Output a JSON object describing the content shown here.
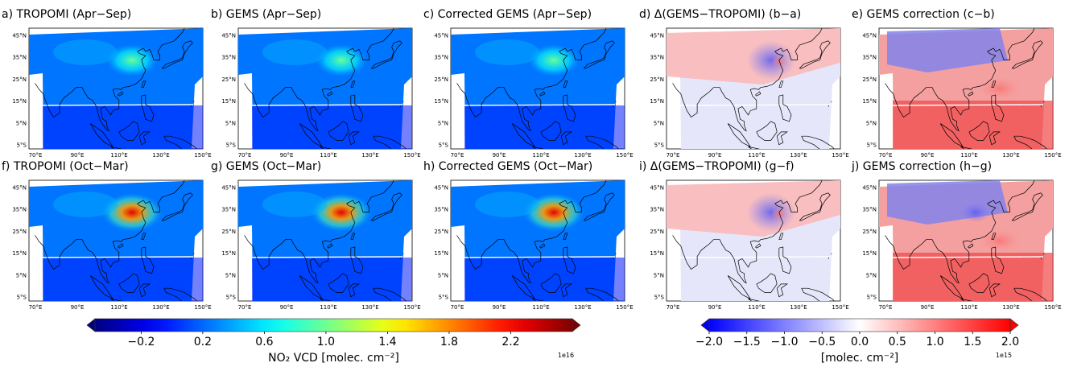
{
  "figure": {
    "colorbars": [
      {
        "id": "no2",
        "label": "NO₂ VCD [molec. cm⁻²]",
        "ticks": [
          "−0.2",
          "0.2",
          "0.6",
          "1.0",
          "1.4",
          "1.8",
          "2.2"
        ],
        "tick_values": [
          -0.2,
          0.2,
          0.6,
          1.0,
          1.4,
          1.8,
          2.2
        ],
        "range": [
          -0.5,
          2.6
        ],
        "multiplier": "1e16",
        "colormap": "jet"
      },
      {
        "id": "diff",
        "label": "[molec. cm⁻²]",
        "ticks": [
          "−2.0",
          "−1.5",
          "−1.0",
          "−0.5",
          "0.0",
          "0.5",
          "1.0",
          "1.5",
          "2.0"
        ],
        "tick_values": [
          -2.0,
          -1.5,
          -1.0,
          -0.5,
          0.0,
          0.5,
          1.0,
          1.5,
          2.0
        ],
        "range": [
          -2.0,
          2.0
        ],
        "multiplier": "1e15",
        "colormap": "bwr"
      }
    ]
  },
  "chart_data": [
    {
      "type": "heatmap",
      "title": "a) TROPOMI (Apr−Sep)",
      "colorbar": "no2",
      "xticks": [
        "70°E",
        "90°E",
        "110°E",
        "130°E",
        "150°E"
      ],
      "yticks": [
        "45°N",
        "35°N",
        "25°N",
        "15°N",
        "5°N",
        "5°S"
      ]
    },
    {
      "type": "heatmap",
      "title": "b) GEMS (Apr−Sep)",
      "colorbar": "no2",
      "xticks": [
        "70°E",
        "90°E",
        "110°E",
        "130°E",
        "150°E"
      ],
      "yticks": [
        "45°N",
        "35°N",
        "25°N",
        "15°N",
        "5°N",
        "5°S"
      ]
    },
    {
      "type": "heatmap",
      "title": "c) Corrected GEMS (Apr−Sep)",
      "colorbar": "no2",
      "xticks": [
        "70°E",
        "90°E",
        "110°E",
        "130°E",
        "150°E"
      ],
      "yticks": [
        "45°N",
        "35°N",
        "25°N",
        "15°N",
        "5°N",
        "5°S"
      ]
    },
    {
      "type": "heatmap",
      "title": "d) Δ(GEMS−TROPOMI) (b−a)",
      "colorbar": "diff",
      "xticks": [
        "70°E",
        "90°E",
        "110°E",
        "130°E",
        "150°E"
      ],
      "yticks": [
        "45°N",
        "35°N",
        "25°N",
        "15°N",
        "5°N",
        "5°S"
      ]
    },
    {
      "type": "heatmap",
      "title": "e) GEMS correction (c−b)",
      "colorbar": "diff",
      "xticks": [
        "70°E",
        "90°E",
        "110°E",
        "130°E",
        "150°E"
      ],
      "yticks": [
        "45°N",
        "35°N",
        "25°N",
        "15°N",
        "5°N",
        "5°S"
      ]
    },
    {
      "type": "heatmap",
      "title": "f) TROPOMI (Oct−Mar)",
      "colorbar": "no2",
      "xticks": [
        "70°E",
        "90°E",
        "110°E",
        "130°E",
        "150°E"
      ],
      "yticks": [
        "45°N",
        "35°N",
        "25°N",
        "15°N",
        "5°N",
        "5°S"
      ]
    },
    {
      "type": "heatmap",
      "title": "g) GEMS (Oct−Mar)",
      "colorbar": "no2",
      "xticks": [
        "70°E",
        "90°E",
        "110°E",
        "130°E",
        "150°E"
      ],
      "yticks": [
        "45°N",
        "35°N",
        "25°N",
        "15°N",
        "5°N",
        "5°S"
      ]
    },
    {
      "type": "heatmap",
      "title": "h) Corrected GEMS (Oct−Mar)",
      "colorbar": "no2",
      "xticks": [
        "70°E",
        "90°E",
        "110°E",
        "130°E",
        "150°E"
      ],
      "yticks": [
        "45°N",
        "35°N",
        "25°N",
        "15°N",
        "5°N",
        "5°S"
      ]
    },
    {
      "type": "heatmap",
      "title": "i) Δ(GEMS−TROPOMI) (g−f)",
      "colorbar": "diff",
      "xticks": [
        "70°E",
        "90°E",
        "110°E",
        "130°E",
        "150°E"
      ],
      "yticks": [
        "45°N",
        "35°N",
        "25°N",
        "15°N",
        "5°N",
        "5°S"
      ]
    },
    {
      "type": "heatmap",
      "title": "j) GEMS correction (h−g)",
      "colorbar": "diff",
      "xticks": [
        "70°E",
        "90°E",
        "110°E",
        "130°E",
        "150°E"
      ],
      "yticks": [
        "45°N",
        "35°N",
        "25°N",
        "15°N",
        "5°N",
        "5°S"
      ]
    }
  ]
}
